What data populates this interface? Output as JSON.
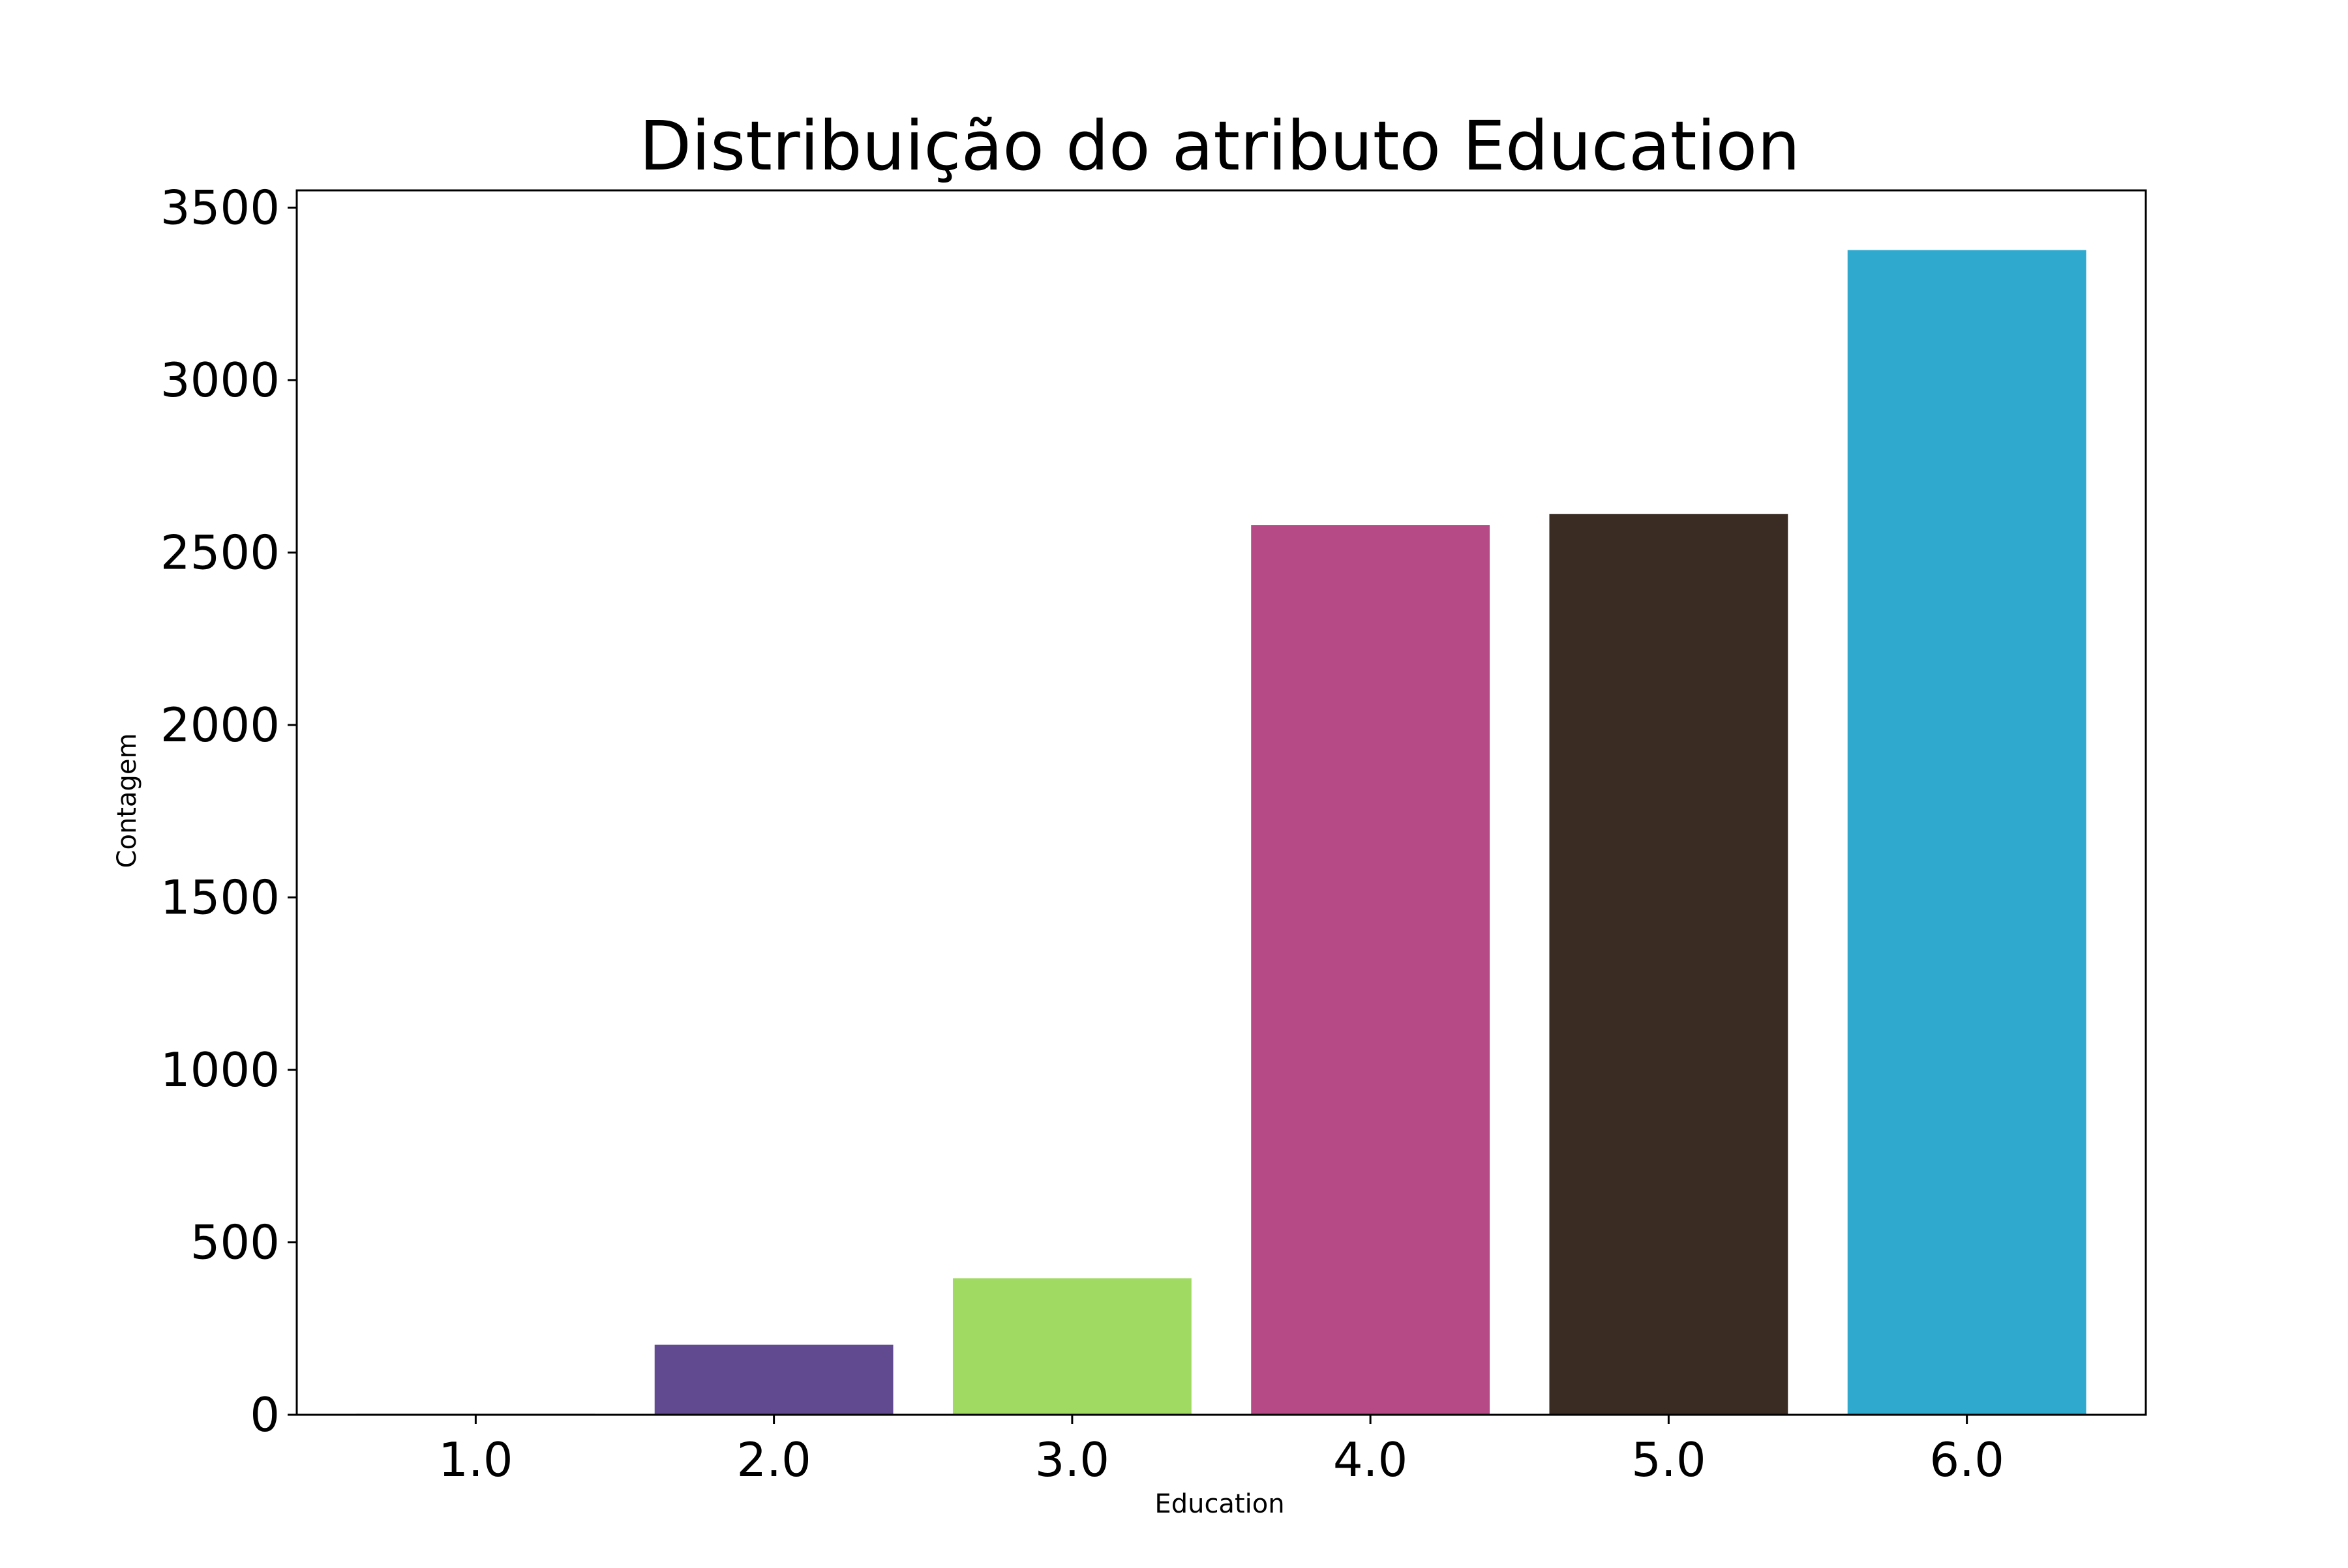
{
  "chart_data": {
    "type": "bar",
    "title": "Distribuição do atributo Education",
    "xlabel": "Education",
    "ylabel": "Contagem",
    "categories": [
      "1.0",
      "2.0",
      "3.0",
      "4.0",
      "5.0",
      "6.0"
    ],
    "values": [
      3,
      203,
      396,
      2580,
      2612,
      3377
    ],
    "colors": [
      "#1e6b5c",
      "#624a90",
      "#a0da63",
      "#b54a87",
      "#3a2c23",
      "#30a9cf"
    ],
    "ylim": [
      0,
      3550
    ],
    "yticks": [
      0,
      500,
      1000,
      1500,
      2000,
      2500,
      3000,
      3500
    ],
    "grid": false,
    "legend": false
  }
}
